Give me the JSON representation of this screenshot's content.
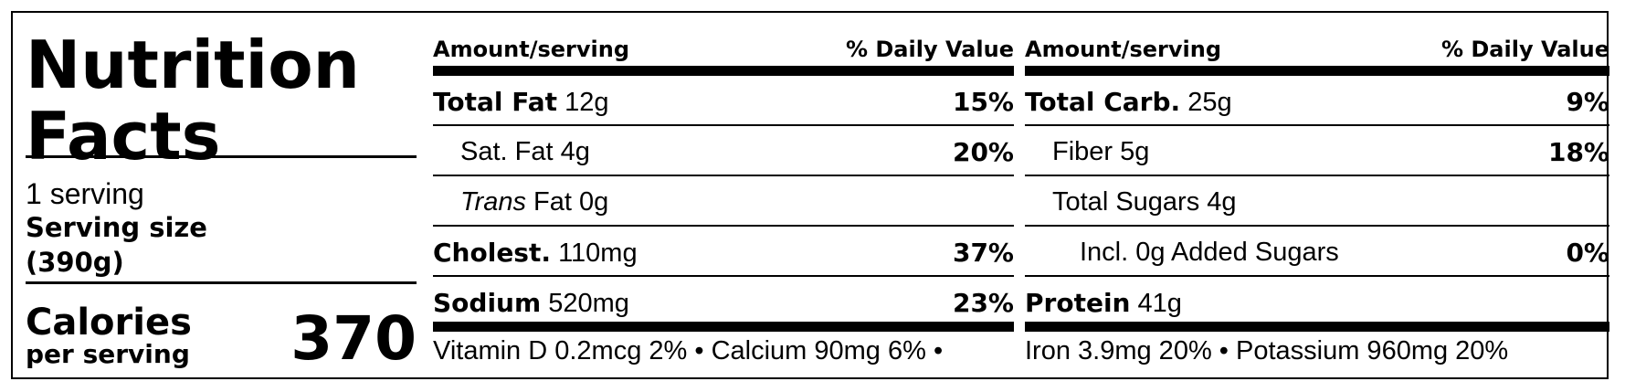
{
  "title": "Nutrition Facts",
  "servings": "1 serving",
  "serving_size_label": "Serving size",
  "serving_size_value": "(390g)",
  "calories": {
    "label": "Calories",
    "sub": "per serving",
    "value": "370"
  },
  "headers": {
    "amount": "Amount/serving",
    "dv": "% Daily Value"
  },
  "left_rows": [
    {
      "bold": "Total Fat",
      "rest": "12g",
      "dv": "15%"
    },
    {
      "bold": "",
      "rest": "Sat. Fat 4g",
      "dv": "20%"
    },
    {
      "italic": "Trans",
      "rest": "Fat 0g",
      "dv": ""
    },
    {
      "bold": "Cholest.",
      "rest": "110mg",
      "dv": "37%"
    },
    {
      "bold": "Sodium",
      "rest": "520mg",
      "dv": "23%"
    }
  ],
  "right_rows": [
    {
      "bold": "Total Carb.",
      "rest": "25g",
      "dv": "9%"
    },
    {
      "bold": "",
      "rest": "Fiber 5g",
      "dv": "18%"
    },
    {
      "bold": "",
      "rest": "Total Sugars 4g",
      "dv": ""
    },
    {
      "bold": "",
      "rest": "Incl. 0g Added Sugars",
      "dv": "0%"
    },
    {
      "bold": "Protein",
      "rest": "41g",
      "dv": ""
    }
  ],
  "vitamins_left": "Vitamin D 0.2mcg 2% • Calcium 90mg 6% •",
  "vitamins_right": "Iron 3.9mg 20% • Potassium 960mg 20%"
}
